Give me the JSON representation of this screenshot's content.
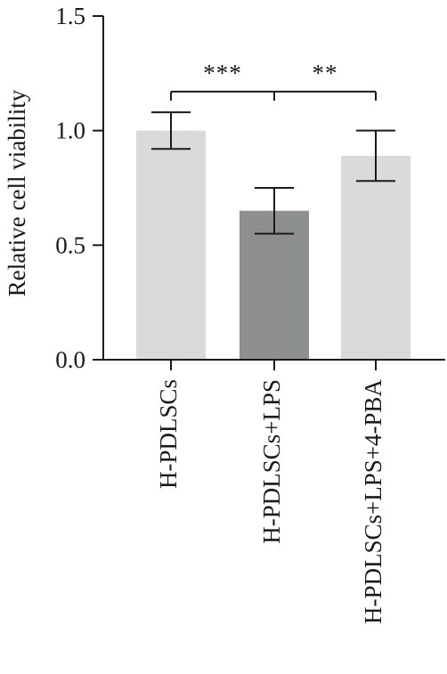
{
  "chart_data": {
    "type": "bar",
    "categories": [
      "H-PDLSCs",
      "H-PDLSCs+LPS",
      "H-PDLSCs+LPS+4-PBA"
    ],
    "values": [
      1.0,
      0.65,
      0.89
    ],
    "errors": [
      0.08,
      0.1,
      0.11
    ],
    "bar_colors": [
      "#d9dadb",
      "#8e8f91",
      "#d9dadb"
    ],
    "title": "",
    "xlabel": "",
    "ylabel": "Relative cell viability",
    "ylim": [
      0.0,
      1.5
    ],
    "yticks": [
      0.0,
      0.5,
      1.0,
      1.5
    ],
    "ytick_labels": [
      "0.0",
      "0.5",
      "1.0",
      "1.5"
    ],
    "grid": false,
    "significance": [
      {
        "from": 0,
        "to": 1,
        "label": "***"
      },
      {
        "from": 1,
        "to": 2,
        "label": "**"
      }
    ],
    "significance_y": 1.17
  }
}
